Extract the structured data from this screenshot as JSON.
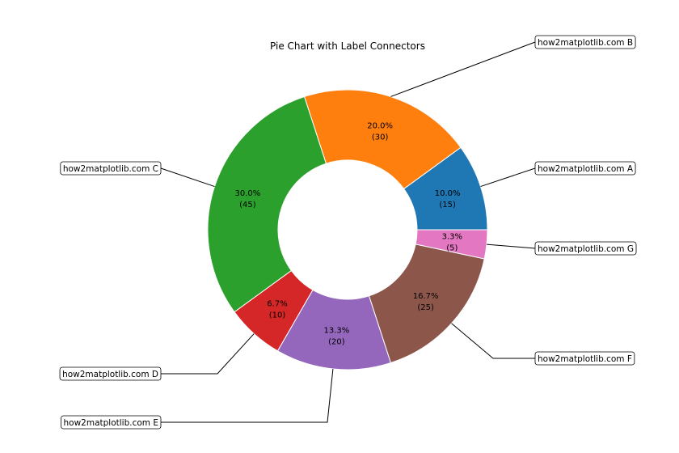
{
  "chart_data": {
    "type": "pie",
    "donut": true,
    "title": "Pie Chart with Label Connectors",
    "start_angle_deg": 0,
    "direction": "counterclockwise",
    "slices": [
      {
        "label": "how2matplotlib.com A",
        "value": 15,
        "percent": "10.0%",
        "count": "(15)",
        "color": "#1f77b4"
      },
      {
        "label": "how2matplotlib.com B",
        "value": 30,
        "percent": "20.0%",
        "count": "(30)",
        "color": "#ff7f0e"
      },
      {
        "label": "how2matplotlib.com C",
        "value": 45,
        "percent": "30.0%",
        "count": "(45)",
        "color": "#2ca02c"
      },
      {
        "label": "how2matplotlib.com D",
        "value": 10,
        "percent": "6.7%",
        "count": "(10)",
        "color": "#d62728"
      },
      {
        "label": "how2matplotlib.com E",
        "value": 20,
        "percent": "13.3%",
        "count": "(20)",
        "color": "#9467bd"
      },
      {
        "label": "how2matplotlib.com F",
        "value": 25,
        "percent": "16.7%",
        "count": "(25)",
        "color": "#8c564b"
      },
      {
        "label": "how2matplotlib.com G",
        "value": 5,
        "percent": "3.3%",
        "count": "(5)",
        "color": "#e377c2"
      }
    ]
  }
}
